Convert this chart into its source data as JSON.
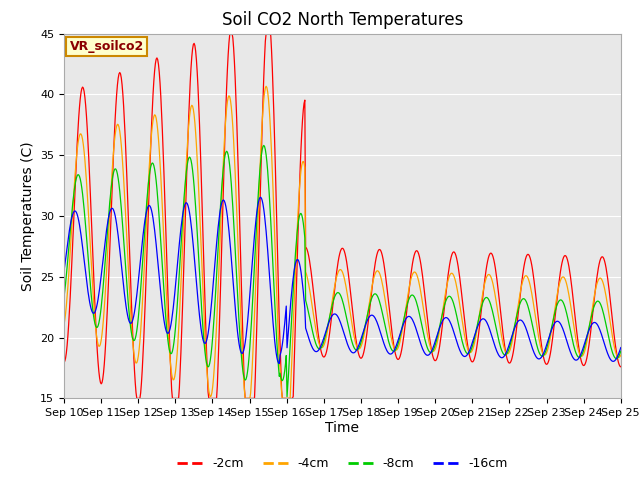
{
  "title": "Soil CO2 North Temperatures",
  "ylabel": "Soil Temperatures (C)",
  "xlabel": "Time",
  "annotation": "VR_soilco2",
  "ylim": [
    15,
    45
  ],
  "xlim": [
    0,
    15
  ],
  "xtick_labels": [
    "Sep 10",
    "Sep 11",
    "Sep 12",
    "Sep 13",
    "Sep 14",
    "Sep 15",
    "Sep 16",
    "Sep 17",
    "Sep 18",
    "Sep 19",
    "Sep 20",
    "Sep 21",
    "Sep 22",
    "Sep 23",
    "Sep 24",
    "Sep 25"
  ],
  "ytick_labels": [
    15,
    20,
    25,
    30,
    35,
    40,
    45
  ],
  "colors": {
    "-2cm": "#ff0000",
    "-4cm": "#ffa500",
    "-8cm": "#00cc00",
    "-16cm": "#0000ff"
  },
  "bg_color": "#e8e8e8",
  "title_fontsize": 12,
  "label_fontsize": 10,
  "tick_fontsize": 8
}
